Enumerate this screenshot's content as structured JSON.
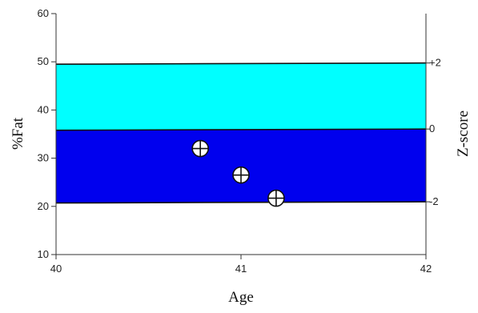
{
  "chart_data": {
    "type": "scatter",
    "xlabel": "Age",
    "ylabel": "%Fat",
    "y2label": "Z-score",
    "xlim": [
      40,
      42
    ],
    "ylim": [
      10,
      60
    ],
    "x_ticks": [
      40,
      41,
      42
    ],
    "y_ticks": [
      10,
      20,
      30,
      40,
      50,
      60
    ],
    "y2_ticks": [
      {
        "label": "+2",
        "y": 49.5
      },
      {
        "label": "0",
        "y": 35.8
      },
      {
        "label": "-2",
        "y": 20.7
      }
    ],
    "bands": [
      {
        "from": 35.8,
        "to": 49.5,
        "color": "#00ffff"
      },
      {
        "from": 20.7,
        "to": 35.8,
        "color": "#0000ee"
      }
    ],
    "points": [
      {
        "x": 40.78,
        "y": 32
      },
      {
        "x": 41.0,
        "y": 26.5
      },
      {
        "x": 41.19,
        "y": 21.7
      }
    ],
    "grid": false,
    "legend": "none"
  }
}
